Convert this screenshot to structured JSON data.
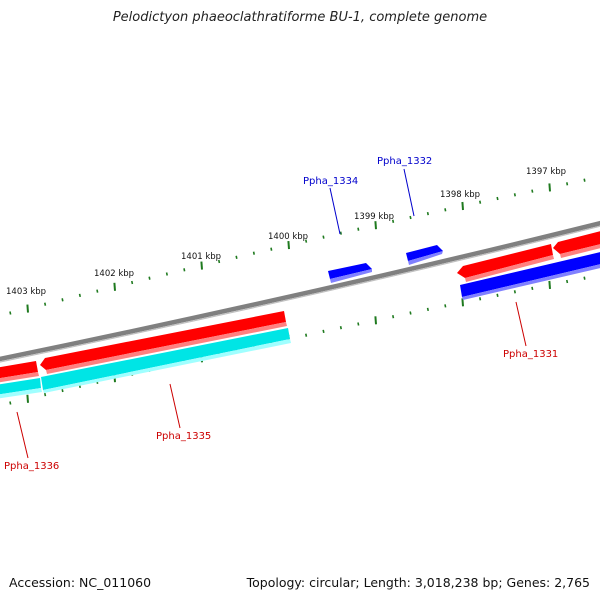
{
  "title": "Pelodictyon phaeoclathratiforme BU-1, complete genome",
  "accession": "Accession: NC_011060",
  "summary": "Topology: circular; Length: 3,018,238 bp; Genes: 2,765",
  "colors": {
    "backbone": "#808080",
    "tick": "#1f7a1f",
    "cds_red": "#ff0000",
    "cds_red_light": "#ff8080",
    "cds_blue": "#0000ff",
    "cds_blue_light": "#8080ff",
    "cds_cyan": "#00e5e5",
    "cds_cyan_light": "#a0ffff",
    "label_red": "#cc0000",
    "label_blue": "#0000cc"
  },
  "ruler": {
    "labels": [
      "1403 kbp",
      "1402 kbp",
      "1401 kbp",
      "1400 kbp",
      "1399 kbp",
      "1398 kbp",
      "1397 kbp"
    ]
  },
  "genes": [
    {
      "name": "Ppha_1336",
      "color": "label_red"
    },
    {
      "name": "Ppha_1335",
      "color": "label_red"
    },
    {
      "name": "Ppha_1334",
      "color": "label_blue"
    },
    {
      "name": "Ppha_1332",
      "color": "label_blue"
    },
    {
      "name": "Ppha_1331",
      "color": "label_red"
    }
  ]
}
